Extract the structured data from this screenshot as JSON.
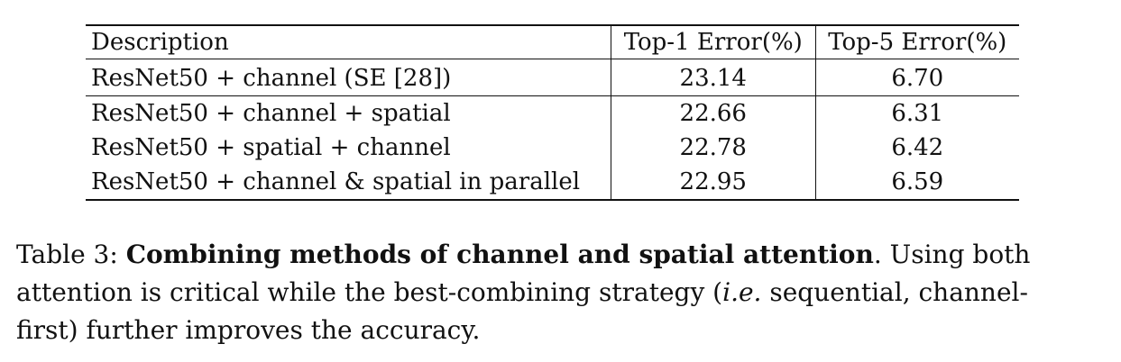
{
  "table": {
    "headers": [
      "Description",
      "Top-1 Error(%)",
      "Top-5 Error(%)"
    ],
    "rows": [
      {
        "description": "ResNet50 + channel (SE [28])",
        "top1": "23.14",
        "top5": "6.70",
        "bold": false
      },
      {
        "description": "ResNet50 + channel + spatial",
        "top1": "22.66",
        "top5": "6.31",
        "bold": true
      },
      {
        "description": "ResNet50 + spatial + channel",
        "top1": "22.78",
        "top5": "6.42",
        "bold": false
      },
      {
        "description": "ResNet50 + channel & spatial in parallel",
        "top1": "22.95",
        "top5": "6.59",
        "bold": false
      }
    ]
  },
  "caption": {
    "label": "Table 3: ",
    "title": "Combining methods of channel and spatial attention",
    "line1_rest": ". Using both",
    "line2_pre": "attention is critical while the best-combining strategy (",
    "ie": "i.e.",
    "line2_post": " sequential, channel-",
    "line3": "first) further improves the accuracy."
  }
}
